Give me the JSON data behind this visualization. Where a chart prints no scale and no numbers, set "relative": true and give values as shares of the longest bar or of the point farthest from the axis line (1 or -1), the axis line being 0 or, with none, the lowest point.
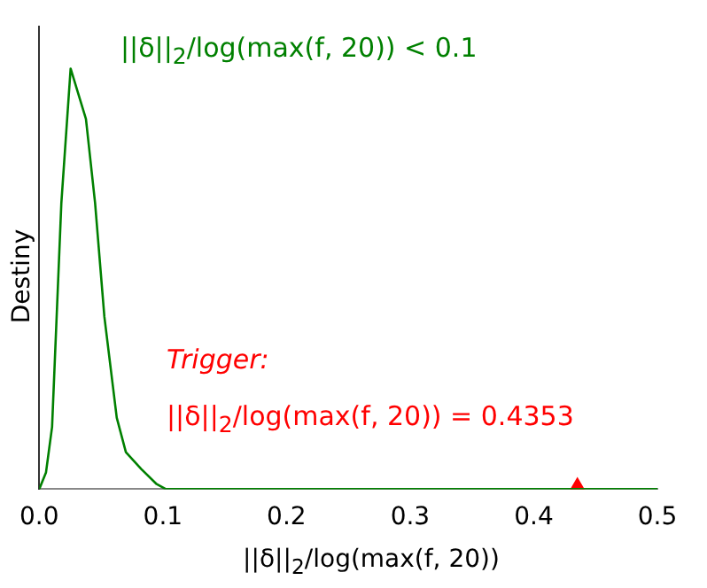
{
  "chart_data": {
    "type": "line",
    "relative": true,
    "xlabel": "||δ||$_{2}$/log(max(f, 20))",
    "ylabel": "Destiny",
    "xlim": [
      0,
      0.5
    ],
    "xticks": [
      {
        "value": 0,
        "label": "0.0"
      },
      0.1,
      0.2,
      0.3,
      0.4,
      {
        "value": 0.5,
        "label": "0.5"
      }
    ],
    "grid": false,
    "legend": false,
    "series": [
      {
        "color": "#008000",
        "marker": "none",
        "x": [
          0,
          0.0055,
          0.0104,
          0.0179,
          0.0254,
          0.0378,
          0.0452,
          0.0527,
          0.0627,
          0.0701,
          0.0825,
          0.095,
          0.1025,
          0.2,
          0.3,
          0.4,
          0.5
        ],
        "values": [
          0,
          0.04,
          0.148,
          0.68,
          1,
          0.88,
          0.68,
          0.41,
          0.17,
          0.088,
          0.048,
          0.012,
          0,
          0,
          0,
          0,
          0
        ]
      },
      {
        "color": "#ff0000",
        "type": "scatter",
        "marker": "triangle",
        "x": [
          0.4353
        ],
        "values": [
          0
        ]
      }
    ],
    "annotations": [
      "||δ||$_{2}$/log(max(f, 20)) < 0.1",
      "Trigger:",
      "||δ||$_{2}$/log(max(f, 20)) = 0.4353"
    ]
  }
}
